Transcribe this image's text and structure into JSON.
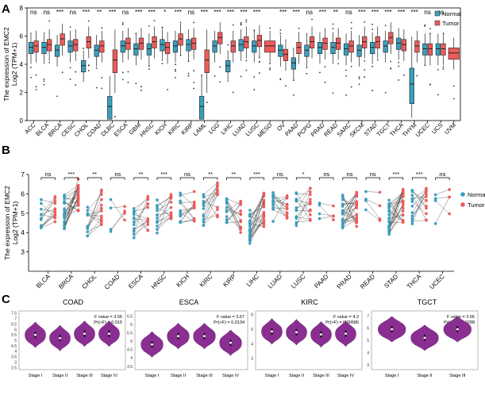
{
  "chart_data": [
    {
      "panel": "A",
      "type": "box",
      "ylabel": "The expression of EMC2",
      "ylabel2": "Log2 (TPM+1)",
      "ylim": [
        0,
        8
      ],
      "yticks": [
        0,
        2,
        4,
        6,
        8
      ],
      "legend": [
        "Normal",
        "Tumor"
      ],
      "colors": {
        "normal": "#3a9fbd",
        "tumor": "#ee5b5b"
      },
      "categories": [
        "ACC",
        "BLCA",
        "BRCA",
        "CESC",
        "CHOL",
        "COAD",
        "DLBC",
        "ESCA",
        "GBM",
        "HNSC",
        "KICH",
        "KIRC",
        "KIRP",
        "LAML",
        "LGG",
        "LIHC",
        "LUAD",
        "LUSC",
        "MESO",
        "OV",
        "PAAD",
        "PCPG",
        "PRAD",
        "READ",
        "SARC",
        "SKCM",
        "STAD",
        "TGCT",
        "THCA",
        "THYM",
        "UCEC",
        "UCS",
        "UVM"
      ],
      "significance": [
        "ns",
        "ns",
        "***",
        "ns",
        "***",
        "**",
        "***",
        "ns",
        "***",
        "***",
        "*",
        "***",
        "ns",
        "***",
        "***",
        "***",
        "***",
        "***",
        "",
        "***",
        "***",
        "ns",
        "***",
        "**",
        "ns",
        "***",
        "***",
        "***",
        "***",
        "***",
        "ns",
        "ns",
        ""
      ],
      "normal_median": [
        5.2,
        5.2,
        5.0,
        5.3,
        3.9,
        5.0,
        1.0,
        5.3,
        5.1,
        5.1,
        5.4,
        5.3,
        5.4,
        1.0,
        5.3,
        3.9,
        5.4,
        5.3,
        null,
        5.0,
        4.1,
        5.0,
        5.2,
        5.2,
        5.1,
        5.0,
        5.2,
        5.3,
        5.5,
        2.6,
        5.1,
        5.1,
        null
      ],
      "tumor_median": [
        5.3,
        5.4,
        5.8,
        5.4,
        5.6,
        5.3,
        4.3,
        5.5,
        5.5,
        5.6,
        5.2,
        5.8,
        5.5,
        4.3,
        5.9,
        5.3,
        5.6,
        5.7,
        5.3,
        4.7,
        5.2,
        5.6,
        5.5,
        5.5,
        5.3,
        5.6,
        5.6,
        5.9,
        5.4,
        5.3,
        5.1,
        5.1,
        4.8
      ]
    },
    {
      "panel": "B",
      "type": "paired",
      "ylabel": "The expression of EMC2",
      "ylabel2": "Log2 (TPM+1)",
      "ylim": [
        2,
        7
      ],
      "yticks": [
        3,
        4,
        5,
        6,
        7
      ],
      "legend": [
        "Normal",
        "Tumor"
      ],
      "categories": [
        "BLCA",
        "BRCA",
        "CHOL",
        "COAD",
        "ESCA",
        "HNSC",
        "KICH",
        "KIRC",
        "KIRP",
        "LIHC",
        "LUAD",
        "LUSC",
        "PAAD",
        "PRAD",
        "READ",
        "STAD",
        "THCA",
        "UCEC"
      ],
      "significance": [
        "ns",
        "***",
        "**",
        "ns",
        "**",
        "***",
        "ns",
        "**",
        "**",
        "***",
        "ns",
        "*",
        "ns",
        "ns",
        "ns",
        "***",
        "***",
        "ns"
      ],
      "normal_center": [
        5.0,
        5.1,
        4.7,
        4.9,
        4.4,
        4.8,
        5.3,
        5.1,
        5.2,
        4.3,
        5.3,
        5.2,
        5.2,
        5.1,
        5.3,
        4.8,
        5.3,
        5.2
      ],
      "tumor_center": [
        5.2,
        5.9,
        5.3,
        5.0,
        5.0,
        5.4,
        5.3,
        5.7,
        4.9,
        5.2,
        5.4,
        5.5,
        5.3,
        5.2,
        5.4,
        5.4,
        5.5,
        5.4
      ]
    },
    {
      "panel": "C",
      "type": "violin",
      "title": "COAD",
      "annotation": [
        "F value = 3.56",
        "Pr(>F) = 0.015"
      ],
      "categories": [
        "Stage I",
        "Stage II",
        "Stage III",
        "Stage IV"
      ],
      "yticks": [
        2.5,
        3.0,
        3.5,
        4.0,
        4.5,
        5.0,
        5.5,
        6.0,
        6.5,
        7.0,
        7.5
      ],
      "ylim": [
        2.3,
        7.7
      ],
      "medians": [
        5.5,
        5.2,
        5.6,
        5.6
      ]
    },
    {
      "panel": "C",
      "type": "violin",
      "title": "ESCA",
      "annotation": [
        "F value = 3.67",
        "Pr(>F) = 0.0134"
      ],
      "categories": [
        "Stage I",
        "Stage II",
        "Stage III",
        "Stage IV"
      ],
      "yticks": [
        3.5,
        4.0,
        4.5,
        5.0,
        5.5,
        6.0,
        6.5
      ],
      "ylim": [
        3.3,
        6.8
      ],
      "medians": [
        4.8,
        5.3,
        5.3,
        4.9
      ]
    },
    {
      "panel": "C",
      "type": "violin",
      "title": "KIRC",
      "annotation": [
        "F value = 4.2",
        "Pr(>F) = 0.00586"
      ],
      "categories": [
        "Stage I",
        "Stage II",
        "Stage III",
        "Stage IV"
      ],
      "yticks": [
        2,
        4,
        6,
        8
      ],
      "ylim": [
        0.5,
        8.5
      ],
      "medians": [
        5.7,
        5.6,
        5.3,
        5.4
      ]
    },
    {
      "panel": "C",
      "type": "violin",
      "title": "TGCT",
      "annotation": [
        "F value = 3.66",
        "Pr(>F) = 0.0288"
      ],
      "categories": [
        "Stage I",
        "Stage II",
        "Stage III"
      ],
      "yticks": [
        3,
        4,
        5,
        6,
        7
      ],
      "ylim": [
        2.6,
        7.4
      ],
      "medians": [
        5.9,
        5.2,
        5.9
      ]
    }
  ],
  "panel_labels": [
    "A",
    "B",
    "C"
  ]
}
